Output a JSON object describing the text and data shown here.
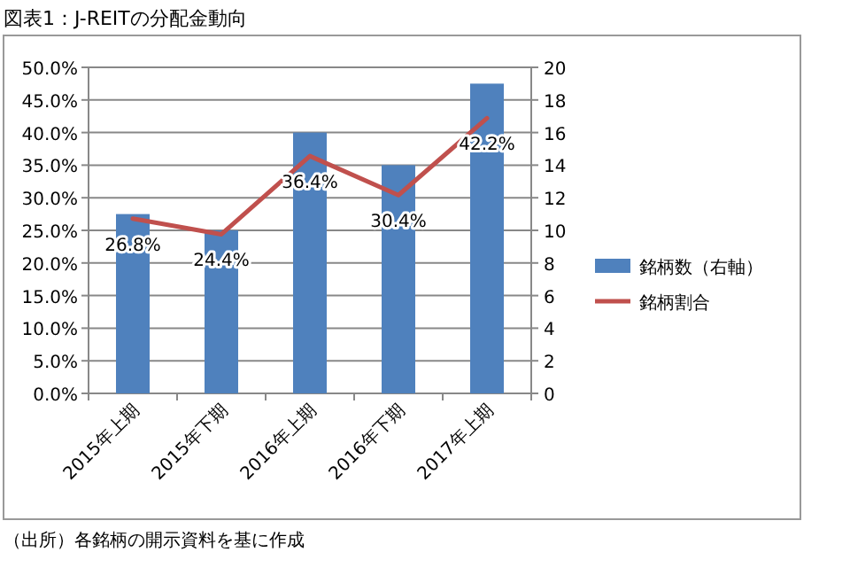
{
  "chart_data": {
    "type": "bar",
    "title": "図表1：J-REITの分配金動向",
    "categories": [
      "2015年上期",
      "2015年下期",
      "2016年上期",
      "2016年下期",
      "2017年上期"
    ],
    "series": [
      {
        "name": "銘柄数（右軸）",
        "axis": "y2",
        "color": "#4f81bd",
        "values": [
          11,
          10,
          16,
          14,
          19
        ]
      },
      {
        "name": "銘柄割合",
        "type": "line",
        "axis": "y",
        "color": "#c0504d",
        "values": [
          26.8,
          24.4,
          36.4,
          30.4,
          42.2
        ],
        "value_labels": [
          "26.8%",
          "24.4%",
          "36.4%",
          "30.4%",
          "42.2%"
        ]
      }
    ],
    "ylim": [
      0,
      50
    ],
    "yticks": [
      {
        "value": 0,
        "label": "0.0%"
      },
      {
        "value": 5,
        "label": "5.0%"
      },
      {
        "value": 10,
        "label": "10.0%"
      },
      {
        "value": 15,
        "label": "15.0%"
      },
      {
        "value": 20,
        "label": "20.0%"
      },
      {
        "value": 25,
        "label": "25.0%"
      },
      {
        "value": 30,
        "label": "30.0%"
      },
      {
        "value": 35,
        "label": "35.0%"
      },
      {
        "value": 40,
        "label": "40.0%"
      },
      {
        "value": 45,
        "label": "45.0%"
      },
      {
        "value": 50,
        "label": "50.0%"
      }
    ],
    "y2lim": [
      0,
      20
    ],
    "y2ticks": [
      0,
      2,
      4,
      6,
      8,
      10,
      12,
      14,
      16,
      18,
      20
    ],
    "grid": "y",
    "legend": "right",
    "annotations": [
      "（出所）各銘柄の開示資料を基に作成"
    ]
  }
}
